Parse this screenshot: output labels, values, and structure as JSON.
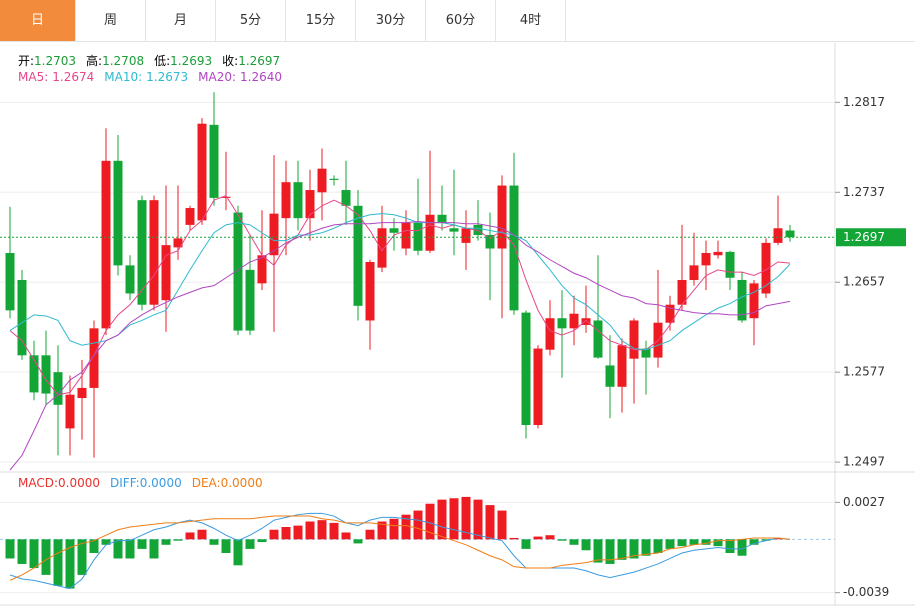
{
  "tabs": [
    "日",
    "周",
    "月",
    "5分",
    "15分",
    "30分",
    "60分",
    "4时"
  ],
  "chart_data": [
    {
      "type": "candlestick",
      "info": [
        {
          "label": "开:",
          "value": 1.2703
        },
        {
          "label": "高:",
          "value": 1.2708
        },
        {
          "label": "低:",
          "value": 1.2693
        },
        {
          "label": "收:",
          "value": 1.2697
        }
      ],
      "info_value_color": "#1a9d38",
      "up_color": "#ee1c22",
      "down_color": "#13a536",
      "open": [
        1.2683,
        1.2659,
        1.2592,
        1.2592,
        1.2577,
        1.2527,
        1.2554,
        1.2563,
        1.2616,
        1.2765,
        1.2672,
        1.273,
        1.2637,
        1.2641,
        1.2688,
        1.2708,
        1.2712,
        1.2797,
        1.2732,
        1.2719,
        1.2668,
        1.2656,
        1.2681,
        1.2714,
        1.2746,
        1.2714,
        1.2737,
        1.2749,
        1.2739,
        1.2725,
        1.2623,
        1.267,
        1.2705,
        1.2687,
        1.271,
        1.2685,
        1.2717,
        1.2705,
        1.2692,
        1.2708,
        1.2699,
        1.2687,
        1.2743,
        1.263,
        1.253,
        1.2597,
        1.2625,
        1.2616,
        1.2619,
        1.2623,
        1.2583,
        1.2564,
        1.2589,
        1.2598,
        1.259,
        1.2621,
        1.2637,
        1.2659,
        1.2672,
        1.2681,
        1.2684,
        1.2659,
        1.2625,
        1.2647,
        1.2692,
        1.2703
      ],
      "high": [
        1.2724,
        1.2668,
        1.2605,
        1.2614,
        1.2601,
        1.2574,
        1.2588,
        1.2623,
        1.2794,
        1.2788,
        1.2681,
        1.2734,
        1.2734,
        1.2743,
        1.2743,
        1.2725,
        1.2803,
        1.2826,
        1.2773,
        1.2725,
        1.2699,
        1.2721,
        1.277,
        1.2765,
        1.2765,
        1.2757,
        1.2776,
        1.2752,
        1.2765,
        1.2739,
        1.2677,
        1.2725,
        1.2714,
        1.2721,
        1.2749,
        1.2774,
        1.2743,
        1.2757,
        1.2721,
        1.273,
        1.2719,
        1.2752,
        1.2772,
        1.2632,
        1.2601,
        1.2641,
        1.265,
        1.2645,
        1.2654,
        1.2681,
        1.261,
        1.2607,
        1.2625,
        1.2605,
        1.2668,
        1.2645,
        1.2708,
        1.2701,
        1.2694,
        1.2694,
        1.2685,
        1.2666,
        1.2659,
        1.2696,
        1.2734,
        1.2708
      ],
      "low": [
        1.2625,
        1.2588,
        1.2552,
        1.2548,
        1.2503,
        1.2503,
        1.2517,
        1.2501,
        1.261,
        1.2663,
        1.2641,
        1.2632,
        1.2632,
        1.2613,
        1.2677,
        1.2703,
        1.2708,
        1.2725,
        1.2721,
        1.261,
        1.261,
        1.265,
        1.2613,
        1.2681,
        1.2703,
        1.2694,
        1.2712,
        1.2743,
        1.2708,
        1.2623,
        1.2597,
        1.2666,
        1.2685,
        1.2681,
        1.2681,
        1.2683,
        1.2703,
        1.2681,
        1.2668,
        1.2694,
        1.2641,
        1.2625,
        1.2628,
        1.2518,
        1.2527,
        1.2592,
        1.2572,
        1.2601,
        1.2612,
        1.2589,
        1.2536,
        1.2541,
        1.2549,
        1.2557,
        1.2581,
        1.2614,
        1.2632,
        1.2654,
        1.265,
        1.2678,
        1.265,
        1.2621,
        1.2601,
        1.2643,
        1.269,
        1.2693
      ],
      "close": [
        1.2632,
        1.2592,
        1.2559,
        1.2558,
        1.2548,
        1.2557,
        1.2563,
        1.2616,
        1.2765,
        1.2672,
        1.2647,
        1.2637,
        1.273,
        1.269,
        1.2696,
        1.2723,
        1.2798,
        1.2732,
        1.2733,
        1.2614,
        1.2614,
        1.2681,
        1.2718,
        1.2746,
        1.2714,
        1.2739,
        1.2758,
        1.2748,
        1.2725,
        1.2636,
        1.2675,
        1.2705,
        1.2701,
        1.271,
        1.2685,
        1.2717,
        1.271,
        1.2702,
        1.2705,
        1.2699,
        1.2687,
        1.2743,
        1.2632,
        1.253,
        1.2598,
        1.2625,
        1.2616,
        1.2629,
        1.2625,
        1.259,
        1.2564,
        1.2601,
        1.2623,
        1.259,
        1.2621,
        1.2637,
        1.2659,
        1.2672,
        1.2683,
        1.2684,
        1.2661,
        1.2623,
        1.2656,
        1.2692,
        1.2705,
        1.2697
      ],
      "ma": [
        {
          "label": "MA5:",
          "value": 1.2674,
          "color": "#e6478a",
          "values": [
            1.2614,
            1.2605,
            1.2588,
            1.257,
            1.2557,
            1.2559,
            1.2574,
            1.2592,
            1.2614,
            1.2628,
            1.2637,
            1.265,
            1.2663,
            1.2681,
            1.2685,
            1.2703,
            1.2712,
            1.273,
            1.2734,
            1.2717,
            1.2699,
            1.2681,
            1.2672,
            1.269,
            1.2699,
            1.2717,
            1.2725,
            1.273,
            1.2725,
            1.2717,
            1.2703,
            1.2685,
            1.2699,
            1.2703,
            1.2703,
            1.2708,
            1.2705,
            1.2708,
            1.2705,
            1.2703,
            1.2696,
            1.2703,
            1.269,
            1.2659,
            1.2632,
            1.2614,
            1.261,
            1.2614,
            1.2623,
            1.2614,
            1.2605,
            1.2601,
            1.2597,
            1.2597,
            1.2605,
            1.2619,
            1.2637,
            1.265,
            1.2663,
            1.2668,
            1.2666,
            1.2666,
            1.2663,
            1.2668,
            1.2675,
            1.2674
          ]
        },
        {
          "label": "MA10:",
          "value": 1.2673,
          "color": "#2fbad0",
          "values": [
            1.2614,
            1.2621,
            1.2628,
            1.2627,
            1.2623,
            1.2605,
            1.2601,
            1.2603,
            1.2605,
            1.261,
            1.2619,
            1.2623,
            1.2628,
            1.2632,
            1.265,
            1.2668,
            1.2685,
            1.2701,
            1.2708,
            1.271,
            1.2708,
            1.2701,
            1.2694,
            1.2694,
            1.2699,
            1.2699,
            1.2701,
            1.2705,
            1.271,
            1.2714,
            1.2717,
            1.2718,
            1.2717,
            1.2714,
            1.271,
            1.271,
            1.271,
            1.2708,
            1.2705,
            1.2705,
            1.2703,
            1.2701,
            1.2699,
            1.2694,
            1.2681,
            1.2668,
            1.2654,
            1.2643,
            1.2637,
            1.2628,
            1.2619,
            1.2605,
            1.2598,
            1.2597,
            1.2601,
            1.2605,
            1.2614,
            1.2621,
            1.2628,
            1.2634,
            1.2638,
            1.2644,
            1.2648,
            1.2654,
            1.2662,
            1.2673
          ]
        },
        {
          "label": "MA20:",
          "value": {
            "value": 1.264,
            "label": "1.2640"
          },
          "color": "#b146c2",
          "values": [
            1.249,
            1.2503,
            1.2525,
            1.2548,
            1.2557,
            1.257,
            1.2577,
            1.2592,
            1.2605,
            1.261,
            1.2621,
            1.2628,
            1.2634,
            1.2639,
            1.2644,
            1.2648,
            1.2652,
            1.2654,
            1.2661,
            1.2668,
            1.2675,
            1.2679,
            1.2685,
            1.2692,
            1.2697,
            1.2701,
            1.2705,
            1.2708,
            1.2709,
            1.2709,
            1.2709,
            1.271,
            1.271,
            1.271,
            1.2711,
            1.271,
            1.271,
            1.271,
            1.2709,
            1.2709,
            1.2707,
            1.2705,
            1.2699,
            1.269,
            1.2684,
            1.2677,
            1.2671,
            1.2665,
            1.2661,
            1.2655,
            1.265,
            1.2645,
            1.2643,
            1.2638,
            1.2637,
            1.2634,
            1.2632,
            1.263,
            1.2629,
            1.2629,
            1.2628,
            1.2628,
            1.263,
            1.2636,
            1.2638,
            1.264
          ]
        }
      ],
      "last_price": 1.2697,
      "last_price_color": "#13a536",
      "ylim": [
        1.249,
        1.2868
      ],
      "yticks": [
        1.2497,
        1.2577,
        1.2657,
        1.2737,
        1.2817
      ],
      "grid": true
    },
    {
      "type": "macd",
      "legend": [
        {
          "label": "MACD:",
          "value": {
            "value": 0,
            "label": "0.0000"
          },
          "color": "#e8322f"
        },
        {
          "label": "DIFF:",
          "value": {
            "value": 0,
            "label": "0.0000"
          },
          "color": "#3a9be0"
        },
        {
          "label": "DEA:",
          "value": {
            "value": 0,
            "label": "0.0000"
          },
          "color": "#f07d16"
        }
      ],
      "up_color": "#ee1c22",
      "down_color": "#13a536",
      "histogram": [
        -0.0014,
        -0.0018,
        -0.0021,
        -0.0026,
        -0.0034,
        -0.0036,
        -0.0026,
        -0.001,
        -0.0004,
        -0.0014,
        -0.0014,
        -0.0007,
        -0.0014,
        -0.0004,
        -0.0001,
        0.0005,
        0.0007,
        -0.0004,
        -0.001,
        -0.0019,
        -0.0007,
        -0.0002,
        0.0007,
        0.0009,
        0.001,
        0.0013,
        0.0014,
        0.0012,
        0.0005,
        -0.0003,
        0.0007,
        0.0013,
        0.0015,
        0.0018,
        0.0021,
        0.0026,
        0.0029,
        0.003,
        0.0031,
        0.0029,
        0.0025,
        0.0021,
        0.0001,
        -0.0007,
        0.0002,
        0.0003,
        -0.0001,
        -0.0004,
        -0.0008,
        -0.0017,
        -0.0018,
        -0.0015,
        -0.0014,
        -0.0012,
        -0.001,
        -0.0007,
        -0.0005,
        -0.0004,
        -0.0004,
        -0.0005,
        -0.001,
        -0.0012,
        -0.0004,
        -0.0001,
        0.0001,
        0
      ],
      "lines": [
        {
          "color": "#3a9be0",
          "values": [
            -0.0026,
            -0.0029,
            -0.003,
            -0.0032,
            -0.0034,
            -0.0036,
            -0.0029,
            -0.0015,
            -0.0004,
            -0.0001,
            -0.0001,
            0.0003,
            0.0007,
            0.0009,
            0.0012,
            0.0014,
            0.0012,
            0.0008,
            0.0003,
            -0.0001,
            0.0003,
            0.0008,
            0.0014,
            0.0016,
            0.0018,
            0.0019,
            0.0019,
            0.0017,
            0.0012,
            0.001,
            0.0014,
            0.0016,
            0.0016,
            0.0015,
            0.0014,
            0.0012,
            0.0009,
            0.0007,
            0.0005,
            0.0003,
            0.0001,
            -0.0001,
            -0.0012,
            -0.0021,
            -0.0021,
            -0.0021,
            -0.0021,
            -0.0021,
            -0.0023,
            -0.0026,
            -0.0028,
            -0.0026,
            -0.0024,
            -0.0021,
            -0.0018,
            -0.0014,
            -0.001,
            -0.0008,
            -0.0007,
            -0.0006,
            -0.0007,
            -0.0007,
            -0.0003,
            -0.0001,
            0.0001,
            0
          ]
        },
        {
          "color": "#f07d16",
          "values": [
            -0.003,
            -0.0026,
            -0.0021,
            -0.0015,
            -0.001,
            -0.0006,
            -0.0003,
            -0.0001,
            0.0003,
            0.0007,
            0.0009,
            0.001,
            0.0011,
            0.0012,
            0.0012,
            0.0013,
            0.0014,
            0.0015,
            0.0015,
            0.0015,
            0.0015,
            0.0016,
            0.0017,
            0.0017,
            0.0017,
            0.0017,
            0.0015,
            0.0014,
            0.0012,
            0.0012,
            0.0012,
            0.0011,
            0.001,
            0.001,
            0.0008,
            0.0005,
            0.0002,
            -0.0001,
            -0.0004,
            -0.0008,
            -0.0012,
            -0.0015,
            -0.002,
            -0.0021,
            -0.0021,
            -0.0021,
            -0.0019,
            -0.0018,
            -0.0017,
            -0.0015,
            -0.0015,
            -0.0014,
            -0.0012,
            -0.0011,
            -0.001,
            -0.0007,
            -0.0006,
            -0.0004,
            -0.0003,
            -0.0001,
            -0.0001,
            0,
            0.0001,
            0.0001,
            0.0001,
            0
          ]
        }
      ],
      "zero_line_color": "#9cc8ea",
      "ylim": [
        -0.0048,
        0.0047
      ],
      "yticks": [
        -0.0039,
        0.0027
      ],
      "grid": true
    }
  ]
}
